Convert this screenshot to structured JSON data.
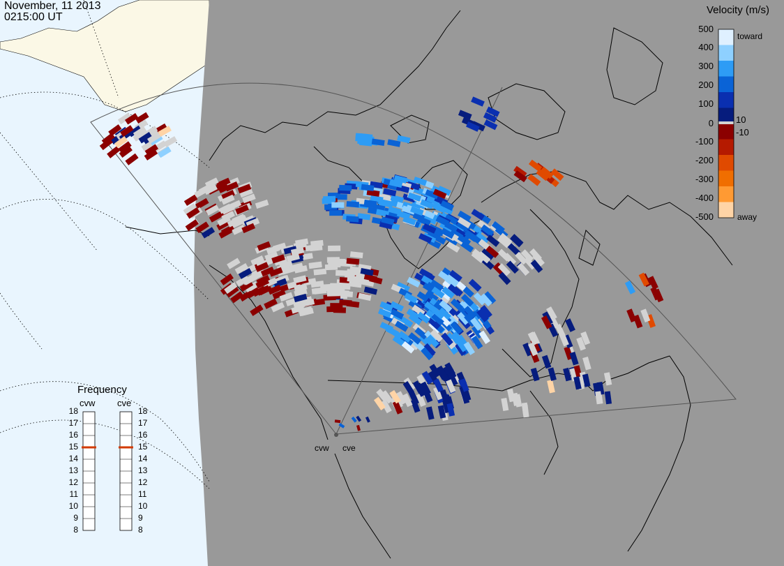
{
  "header": {
    "date": "November, 11 2013",
    "time": "0215:00 UT"
  },
  "colors": {
    "ocean": "#e9f5fe",
    "land_daylight": "#fbf8e6",
    "night_shade": "#999999",
    "coast": "#000000",
    "ground_scatter": "#d3d3d3"
  },
  "colorbar": {
    "title": "Velocity (m/s)",
    "ticks": [
      "500",
      "400",
      "300",
      "200",
      "100",
      "10",
      "0",
      "-10",
      "-100",
      "-200",
      "-300",
      "-400",
      "-500"
    ],
    "toward_label": "toward",
    "away_label": "away",
    "colors": [
      "#dff0ff",
      "#8ed0ff",
      "#2e9cf5",
      "#0a63d6",
      "#0a2fb0",
      "#061c7d",
      "#8b0000",
      "#b51a00",
      "#e04a00",
      "#f06e00",
      "#ff9a33",
      "#ffd4a6"
    ]
  },
  "frequency": {
    "title": "Frequency",
    "radars": [
      {
        "name": "cvw",
        "value": 15
      },
      {
        "name": "cve",
        "value": 15
      }
    ],
    "ticks": [
      "18",
      "17",
      "16",
      "15",
      "14",
      "13",
      "12",
      "11",
      "10",
      "9",
      "8"
    ]
  },
  "radar_sites": [
    {
      "name": "cvw"
    },
    {
      "name": "cve"
    }
  ]
}
